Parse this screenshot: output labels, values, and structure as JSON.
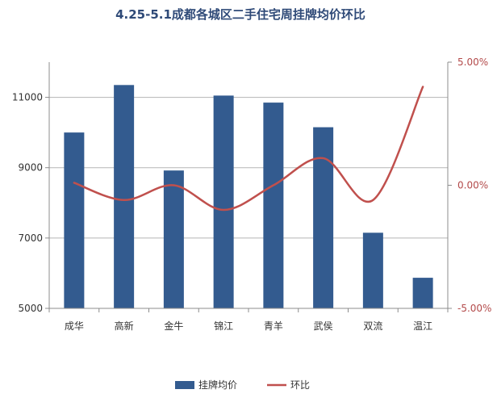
{
  "chart_data": {
    "type": "bar",
    "title": "4.25-5.1成都各城区二手住宅周挂牌均价环比",
    "categories": [
      "成华",
      "高新",
      "金牛",
      "锦江",
      "青羊",
      "武侯",
      "双流",
      "温江"
    ],
    "series": [
      {
        "name": "挂牌均价",
        "type": "bar",
        "axis": "left",
        "color": "#335b8f",
        "values": [
          10000,
          11350,
          8920,
          11050,
          10850,
          10150,
          7150,
          5870
        ]
      },
      {
        "name": "环比",
        "type": "line",
        "axis": "right",
        "color": "#c0504d",
        "values": [
          "0.10%",
          "-0.60%",
          "0.00%",
          "-1.00%",
          "0.00%",
          "1.10%",
          "-0.60%",
          "4.00%"
        ]
      }
    ],
    "y_left": {
      "ticks": [
        "5000",
        "7000",
        "9000",
        "11000"
      ],
      "min": 5000,
      "max": 12000
    },
    "y_right": {
      "ticks": [
        "5.00%",
        "0.00%",
        "-5.00%"
      ],
      "min": -5,
      "max": 5
    },
    "grid": true,
    "legend_position": "bottom-center"
  }
}
